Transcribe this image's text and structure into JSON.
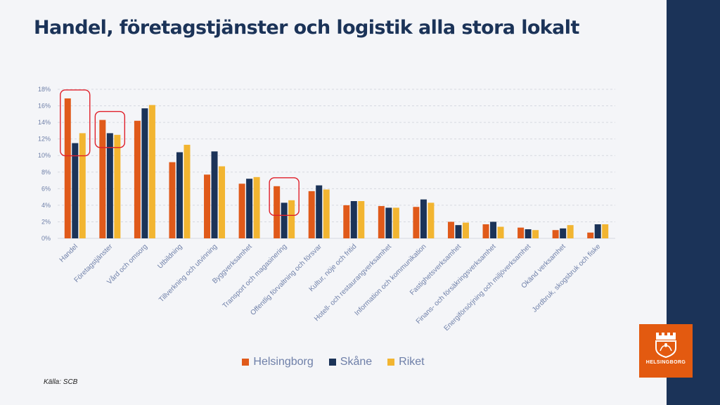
{
  "page": {
    "title": "Handel, företagstjänster och logistik alla stora lokalt"
  },
  "source": "Källa: SCB",
  "logo": {
    "text": "HELSINGBORG"
  },
  "colors": {
    "helsingborg": "#e05a1a",
    "skane": "#1b3358",
    "riket": "#f2b531",
    "highlight": "#e0202a",
    "axis_text": "#6e7fa8",
    "grid": "#d6d9e0"
  },
  "chart_data": {
    "type": "bar",
    "title": "Handel, företagstjänster och logistik alla stora lokalt",
    "xlabel": "",
    "ylabel": "",
    "ylim": [
      0,
      18
    ],
    "yticks": [
      "0%",
      "2%",
      "4%",
      "6%",
      "8%",
      "10%",
      "12%",
      "14%",
      "16%",
      "18%"
    ],
    "grid": true,
    "legend_position": "bottom",
    "categories": [
      "Handel",
      "Företagstjänster",
      "Vård och omsorg",
      "Utbildning",
      "Tillverkning och utvinning",
      "Byggverksamhet",
      "Transport och magasinering",
      "Offentlig förvaltning och försvar",
      "Kultur, nöje och fritid",
      "Hotell- och restaurangverksamhet",
      "Information och kommunikation",
      "Fastighetsverksamhet",
      "Finans- och försäkringsverksamhet",
      "Energiförsörjning och miljöverksamhet",
      "Okänd verksamhet",
      "Jordbruk, skogsbruk och fiske"
    ],
    "series": [
      {
        "name": "Helsingborg",
        "values": [
          16.9,
          14.3,
          14.2,
          9.2,
          7.7,
          6.6,
          6.3,
          5.7,
          4.0,
          3.9,
          3.8,
          2.0,
          1.7,
          1.3,
          1.0,
          0.7
        ]
      },
      {
        "name": "Skåne",
        "values": [
          11.5,
          12.7,
          15.7,
          10.4,
          10.5,
          7.2,
          4.3,
          6.4,
          4.5,
          3.7,
          4.7,
          1.6,
          2.0,
          1.1,
          1.2,
          1.7
        ]
      },
      {
        "name": "Riket",
        "values": [
          12.7,
          12.5,
          16.1,
          11.3,
          8.7,
          7.4,
          4.6,
          5.9,
          4.5,
          3.7,
          4.3,
          1.9,
          1.4,
          1.0,
          1.6,
          1.7
        ]
      }
    ],
    "highlighted_categories": [
      "Handel",
      "Företagstjänster",
      "Transport och magasinering"
    ]
  }
}
